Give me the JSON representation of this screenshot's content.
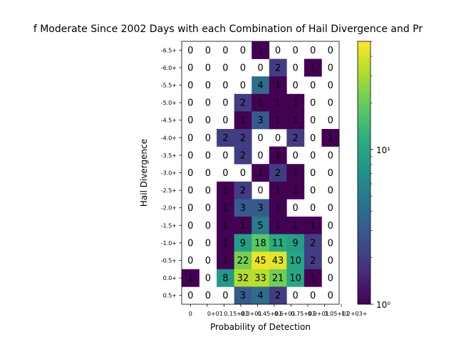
{
  "chart_data": {
    "type": "heatmap",
    "title": "f Moderate Since 2002 Days with each Combination of Hail Divergence and Pr",
    "xlabel": "Probability of Detection",
    "ylabel": "Hail Divergence",
    "x_tick_labels": [
      "0",
      "0+01",
      "0.15+01",
      "0.3+01",
      "0.45+01",
      "0.6+01",
      "0.75+01",
      "0.9+01",
      "1.05+01",
      "1.2+03+"
    ],
    "y_tick_labels": [
      "-6.5+",
      "-6.0+",
      "-5.5+",
      "-5.0+",
      "-4.5+",
      "-4.0+",
      "-3.5+",
      "-3.0+",
      "-2.5+",
      "-2.0+",
      "-1.5+",
      "-1.0+",
      "-0.5+",
      "0.0+",
      "0.5+"
    ],
    "values": [
      [
        0,
        0,
        0,
        0,
        1,
        0,
        0,
        0,
        0
      ],
      [
        0,
        0,
        0,
        0,
        0,
        2,
        0,
        1,
        0
      ],
      [
        0,
        0,
        0,
        0,
        4,
        1,
        0,
        0,
        0
      ],
      [
        0,
        0,
        0,
        2,
        1,
        1,
        1,
        0,
        0
      ],
      [
        0,
        0,
        0,
        1,
        3,
        1,
        1,
        0,
        0
      ],
      [
        0,
        0,
        2,
        2,
        0,
        0,
        2,
        0,
        1
      ],
      [
        0,
        0,
        0,
        2,
        0,
        1,
        0,
        0,
        0
      ],
      [
        0,
        0,
        0,
        0,
        1,
        2,
        1,
        0,
        0
      ],
      [
        0,
        0,
        1,
        2,
        0,
        1,
        1,
        0,
        0
      ],
      [
        0,
        0,
        1,
        3,
        3,
        1,
        0,
        0,
        0
      ],
      [
        0,
        0,
        1,
        1,
        5,
        1,
        1,
        1,
        0
      ],
      [
        0,
        0,
        1,
        9,
        18,
        11,
        9,
        2,
        0
      ],
      [
        0,
        0,
        1,
        22,
        45,
        43,
        10,
        2,
        0
      ],
      [
        1,
        0,
        8,
        32,
        33,
        21,
        10,
        1,
        0
      ],
      [
        0,
        0,
        0,
        3,
        4,
        2,
        0,
        0,
        0
      ]
    ],
    "colorbar": {
      "scale": "log",
      "min": 1,
      "max": 50,
      "tick_labels": [
        "10⁰",
        "10¹"
      ],
      "colormap": "viridis"
    }
  }
}
